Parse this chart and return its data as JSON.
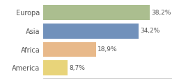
{
  "categories": [
    "Europa",
    "Asia",
    "Africa",
    "America"
  ],
  "values": [
    38.2,
    34.2,
    18.9,
    8.7
  ],
  "labels": [
    "38,2%",
    "34,2%",
    "18,9%",
    "8,7%"
  ],
  "bar_colors": [
    "#abbe8f",
    "#7191bb",
    "#e8b98a",
    "#e8d47a"
  ],
  "background_color": "#ffffff",
  "xlim": [
    0,
    46
  ],
  "bar_height": 0.82,
  "label_fontsize": 6.5,
  "ytick_fontsize": 7.0,
  "label_color": "#555555",
  "ytick_color": "#555555"
}
